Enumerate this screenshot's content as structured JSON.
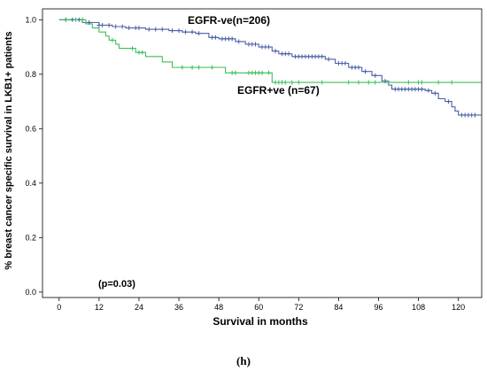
{
  "chart_data": {
    "type": "line",
    "subtype": "kaplan-meier-step",
    "xlabel": "Survival in months",
    "ylabel": "% breast cancer specific survival in LKB1+ patients",
    "xlim": [
      -5,
      127
    ],
    "ylim": [
      -0.02,
      1.04
    ],
    "xticks": [
      0,
      12,
      24,
      36,
      48,
      60,
      72,
      84,
      96,
      108,
      120
    ],
    "yticks": [
      0.0,
      0.2,
      0.4,
      0.6,
      0.8,
      1.0
    ],
    "ytick_labels": [
      "0.0",
      "0.2",
      "0.4",
      "0.6",
      "0.8",
      "1.0"
    ],
    "grid": false,
    "annotation": "(p=0.03)",
    "caption": "(h)",
    "series": [
      {
        "name": "EGFR-ve(n=206)",
        "color": "#4a5fa8",
        "steps": [
          [
            0,
            1.0
          ],
          [
            7,
            0.99
          ],
          [
            12,
            0.98
          ],
          [
            16,
            0.975
          ],
          [
            20,
            0.97
          ],
          [
            26,
            0.965
          ],
          [
            33,
            0.96
          ],
          [
            37,
            0.955
          ],
          [
            41,
            0.95
          ],
          [
            45,
            0.935
          ],
          [
            48,
            0.93
          ],
          [
            53,
            0.92
          ],
          [
            56,
            0.91
          ],
          [
            60,
            0.9
          ],
          [
            64,
            0.885
          ],
          [
            66,
            0.875
          ],
          [
            70,
            0.865
          ],
          [
            80,
            0.855
          ],
          [
            83,
            0.84
          ],
          [
            87,
            0.825
          ],
          [
            91,
            0.81
          ],
          [
            94,
            0.795
          ],
          [
            97,
            0.775
          ],
          [
            99,
            0.76
          ],
          [
            100,
            0.745
          ],
          [
            110,
            0.74
          ],
          [
            112,
            0.73
          ],
          [
            114,
            0.71
          ],
          [
            116,
            0.7
          ],
          [
            118,
            0.68
          ],
          [
            119,
            0.665
          ],
          [
            120,
            0.65
          ],
          [
            127,
            0.65
          ]
        ],
        "censors": [
          [
            2,
            1.0
          ],
          [
            4,
            1.0
          ],
          [
            6,
            1.0
          ],
          [
            9,
            0.99
          ],
          [
            12,
            0.98
          ],
          [
            13,
            0.98
          ],
          [
            15,
            0.98
          ],
          [
            17,
            0.975
          ],
          [
            19,
            0.975
          ],
          [
            21,
            0.97
          ],
          [
            23,
            0.97
          ],
          [
            24,
            0.97
          ],
          [
            27,
            0.965
          ],
          [
            29,
            0.965
          ],
          [
            31,
            0.965
          ],
          [
            34,
            0.96
          ],
          [
            36,
            0.96
          ],
          [
            38,
            0.955
          ],
          [
            40,
            0.955
          ],
          [
            42,
            0.95
          ],
          [
            46,
            0.935
          ],
          [
            47,
            0.935
          ],
          [
            49,
            0.93
          ],
          [
            50,
            0.93
          ],
          [
            51,
            0.93
          ],
          [
            52,
            0.93
          ],
          [
            54,
            0.92
          ],
          [
            57,
            0.91
          ],
          [
            58,
            0.91
          ],
          [
            59,
            0.91
          ],
          [
            61,
            0.9
          ],
          [
            62,
            0.9
          ],
          [
            63,
            0.9
          ],
          [
            65,
            0.885
          ],
          [
            67,
            0.875
          ],
          [
            68,
            0.875
          ],
          [
            69,
            0.875
          ],
          [
            71,
            0.865
          ],
          [
            72,
            0.865
          ],
          [
            73,
            0.865
          ],
          [
            74,
            0.865
          ],
          [
            75,
            0.865
          ],
          [
            76,
            0.865
          ],
          [
            77,
            0.865
          ],
          [
            78,
            0.865
          ],
          [
            79,
            0.865
          ],
          [
            81,
            0.855
          ],
          [
            84,
            0.84
          ],
          [
            85,
            0.84
          ],
          [
            86,
            0.84
          ],
          [
            88,
            0.825
          ],
          [
            89,
            0.825
          ],
          [
            90,
            0.825
          ],
          [
            92,
            0.81
          ],
          [
            95,
            0.795
          ],
          [
            98,
            0.775
          ],
          [
            101,
            0.745
          ],
          [
            102,
            0.745
          ],
          [
            103,
            0.745
          ],
          [
            104,
            0.745
          ],
          [
            105,
            0.745
          ],
          [
            106,
            0.745
          ],
          [
            107,
            0.745
          ],
          [
            108,
            0.745
          ],
          [
            109,
            0.745
          ],
          [
            111,
            0.74
          ],
          [
            113,
            0.73
          ],
          [
            117,
            0.7
          ],
          [
            121,
            0.65
          ],
          [
            122,
            0.65
          ],
          [
            123,
            0.65
          ],
          [
            124,
            0.65
          ],
          [
            125,
            0.65
          ]
        ]
      },
      {
        "name": "EGFR+ve (n=67)",
        "color": "#3dbf5a",
        "steps": [
          [
            0,
            1.0
          ],
          [
            8,
            0.985
          ],
          [
            10,
            0.97
          ],
          [
            12,
            0.955
          ],
          [
            14,
            0.94
          ],
          [
            15,
            0.925
          ],
          [
            17,
            0.91
          ],
          [
            18,
            0.895
          ],
          [
            23,
            0.88
          ],
          [
            26,
            0.865
          ],
          [
            31,
            0.845
          ],
          [
            34,
            0.825
          ],
          [
            50,
            0.805
          ],
          [
            64,
            0.77
          ],
          [
            127,
            0.77
          ]
        ],
        "censors": [
          [
            2,
            1.0
          ],
          [
            5,
            1.0
          ],
          [
            7,
            1.0
          ],
          [
            16,
            0.925
          ],
          [
            22,
            0.895
          ],
          [
            24,
            0.88
          ],
          [
            25,
            0.88
          ],
          [
            37,
            0.825
          ],
          [
            40,
            0.825
          ],
          [
            42,
            0.825
          ],
          [
            46,
            0.825
          ],
          [
            52,
            0.805
          ],
          [
            53,
            0.805
          ],
          [
            57,
            0.805
          ],
          [
            58,
            0.805
          ],
          [
            59,
            0.805
          ],
          [
            60,
            0.805
          ],
          [
            61,
            0.805
          ],
          [
            63,
            0.805
          ],
          [
            65,
            0.77
          ],
          [
            66,
            0.77
          ],
          [
            67,
            0.77
          ],
          [
            68,
            0.77
          ],
          [
            70,
            0.77
          ],
          [
            72,
            0.77
          ],
          [
            79,
            0.77
          ],
          [
            87,
            0.77
          ],
          [
            90,
            0.77
          ],
          [
            93,
            0.77
          ],
          [
            95,
            0.77
          ],
          [
            99,
            0.77
          ],
          [
            105,
            0.77
          ],
          [
            108,
            0.77
          ],
          [
            109,
            0.77
          ],
          [
            114,
            0.77
          ],
          [
            118,
            0.77
          ]
        ]
      }
    ]
  }
}
